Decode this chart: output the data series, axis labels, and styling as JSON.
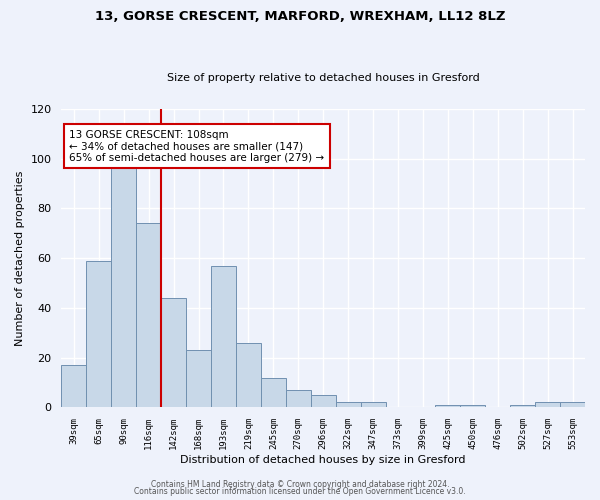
{
  "title1": "13, GORSE CRESCENT, MARFORD, WREXHAM, LL12 8LZ",
  "title2": "Size of property relative to detached houses in Gresford",
  "xlabel": "Distribution of detached houses by size in Gresford",
  "ylabel": "Number of detached properties",
  "footnote1": "Contains HM Land Registry data © Crown copyright and database right 2024.",
  "footnote2": "Contains public sector information licensed under the Open Government Licence v3.0.",
  "bar_labels": [
    "39sqm",
    "65sqm",
    "90sqm",
    "116sqm",
    "142sqm",
    "168sqm",
    "193sqm",
    "219sqm",
    "245sqm",
    "270sqm",
    "296sqm",
    "322sqm",
    "347sqm",
    "373sqm",
    "399sqm",
    "425sqm",
    "450sqm",
    "476sqm",
    "502sqm",
    "527sqm",
    "553sqm"
  ],
  "bar_values": [
    17,
    59,
    98,
    74,
    44,
    23,
    57,
    26,
    12,
    7,
    5,
    2,
    2,
    0,
    0,
    1,
    1,
    0,
    1,
    2,
    2
  ],
  "bar_color": "#c8d8e8",
  "bar_edge_color": "#7090b0",
  "background_color": "#eef2fb",
  "grid_color": "#ffffff",
  "vline_x_index": 3,
  "vline_color": "#cc0000",
  "annotation_title": "13 GORSE CRESCENT: 108sqm",
  "annotation_line1": "← 34% of detached houses are smaller (147)",
  "annotation_line2": "65% of semi-detached houses are larger (279) →",
  "annotation_box_facecolor": "#ffffff",
  "annotation_box_edge": "#cc0000",
  "ylim": [
    0,
    120
  ],
  "yticks": [
    0,
    20,
    40,
    60,
    80,
    100,
    120
  ]
}
